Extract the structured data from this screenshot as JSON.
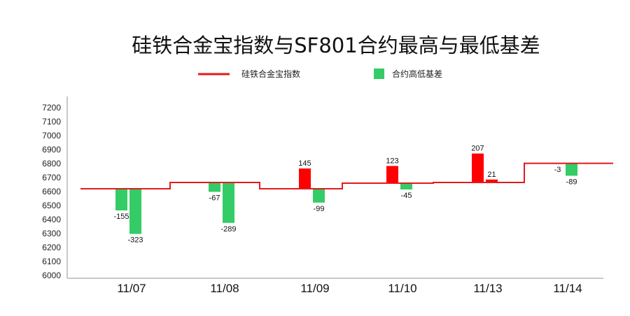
{
  "chart_data": {
    "type": "bar",
    "title": "硅铁合金宝指数与SF801合约最高与最低基差",
    "categories": [
      "11/07",
      "11/08",
      "11/09",
      "11/10",
      "11/13",
      "11/14"
    ],
    "ylim": [
      6000,
      7200
    ],
    "yticks": [
      6000,
      6100,
      6200,
      6300,
      6400,
      6500,
      6600,
      6700,
      6800,
      6900,
      7000,
      7100,
      7200
    ],
    "index_series": {
      "name": "硅铁合金宝指数",
      "values": [
        6620,
        6665,
        6620,
        6660,
        6665,
        6802
      ],
      "color": "#e31a1c"
    },
    "basis_series": {
      "name": "合约高低基差",
      "color_positive": "#ff0000",
      "color_negative": "#33cc66",
      "values": [
        [
          -155,
          -323
        ],
        [
          -67,
          -289
        ],
        [
          145,
          -99
        ],
        [
          123,
          -45
        ],
        [
          207,
          21
        ],
        [
          -3,
          -89
        ]
      ],
      "labels": [
        [
          "-155",
          "-323"
        ],
        [
          "-67",
          "-289"
        ],
        [
          "145",
          "-99"
        ],
        [
          "123",
          "-45"
        ],
        [
          "207",
          "21"
        ],
        [
          "-3",
          "-89"
        ]
      ]
    },
    "legend": {
      "position": "top-center"
    },
    "grid": false
  }
}
